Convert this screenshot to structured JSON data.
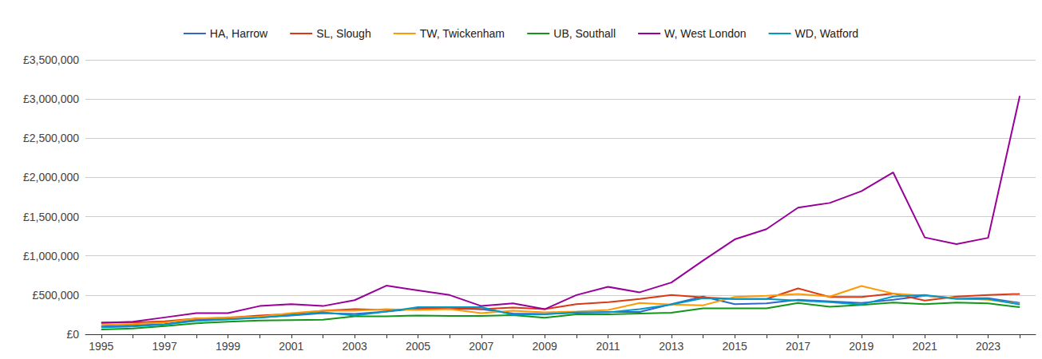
{
  "chart_data": {
    "type": "line",
    "categories": [
      "1995",
      null,
      "1997",
      null,
      "1999",
      null,
      "2001",
      null,
      "2003",
      null,
      "2005",
      null,
      "2007",
      null,
      "2009",
      null,
      "2011",
      null,
      "2013",
      null,
      "2015",
      null,
      "2017",
      null,
      "2019",
      null,
      "2021",
      null,
      "2023",
      null
    ],
    "series": [
      {
        "name": "HA, Harrow",
        "color": "#3366cc",
        "values": [
          100000,
          115000,
          130000,
          185000,
          190000,
          215000,
          240000,
          270000,
          260000,
          290000,
          330000,
          325000,
          320000,
          265000,
          260000,
          275000,
          285000,
          285000,
          385000,
          480000,
          385000,
          395000,
          440000,
          420000,
          400000,
          440000,
          490000,
          460000,
          460000,
          400000
        ]
      },
      {
        "name": "SL, Slough",
        "color": "#dc3912",
        "values": [
          150000,
          150000,
          165000,
          200000,
          210000,
          240000,
          260000,
          300000,
          320000,
          310000,
          320000,
          340000,
          320000,
          340000,
          320000,
          385000,
          410000,
          450000,
          500000,
          470000,
          450000,
          450000,
          585000,
          475000,
          475000,
          520000,
          430000,
          480000,
          500000,
          515000
        ]
      },
      {
        "name": "TW, Twickenham",
        "color": "#ff9900",
        "values": [
          120000,
          130000,
          150000,
          200000,
          215000,
          225000,
          270000,
          300000,
          300000,
          320000,
          310000,
          320000,
          270000,
          300000,
          280000,
          290000,
          310000,
          400000,
          380000,
          370000,
          475000,
          490000,
          515000,
          480000,
          615000,
          520000,
          490000,
          460000,
          440000,
          390000
        ]
      },
      {
        "name": "UB, Southall",
        "color": "#109618",
        "values": [
          60000,
          75000,
          105000,
          140000,
          160000,
          175000,
          180000,
          185000,
          230000,
          230000,
          240000,
          235000,
          235000,
          245000,
          210000,
          255000,
          255000,
          265000,
          275000,
          330000,
          330000,
          330000,
          400000,
          350000,
          375000,
          405000,
          385000,
          405000,
          395000,
          345000
        ]
      },
      {
        "name": "W, West London",
        "color": "#990099",
        "values": [
          145000,
          160000,
          215000,
          270000,
          270000,
          360000,
          385000,
          360000,
          435000,
          620000,
          560000,
          500000,
          360000,
          395000,
          320000,
          500000,
          605000,
          535000,
          660000,
          940000,
          1210000,
          1340000,
          1615000,
          1675000,
          1825000,
          2065000,
          1235000,
          1150000,
          1230000,
          3040000
        ]
      },
      {
        "name": "WD, Watford",
        "color": "#0099c6",
        "values": [
          90000,
          100000,
          125000,
          170000,
          190000,
          210000,
          245000,
          280000,
          240000,
          290000,
          345000,
          345000,
          345000,
          250000,
          255000,
          280000,
          280000,
          320000,
          380000,
          460000,
          450000,
          450000,
          430000,
          410000,
          380000,
          480000,
          500000,
          450000,
          450000,
          380000
        ]
      }
    ],
    "ylim": [
      0,
      3500000
    ],
    "yticks": [
      {
        "value": 0,
        "label": "£0"
      },
      {
        "value": 500000,
        "label": "£500,000"
      },
      {
        "value": 1000000,
        "label": "£1,000,000"
      },
      {
        "value": 1500000,
        "label": "£1,500,000"
      },
      {
        "value": 2000000,
        "label": "£2,000,000"
      },
      {
        "value": 2500000,
        "label": "£2,500,000"
      },
      {
        "value": 3000000,
        "label": "£3,000,000"
      },
      {
        "value": 3500000,
        "label": "£3,500,000"
      }
    ],
    "grid": true,
    "legend": "top"
  }
}
